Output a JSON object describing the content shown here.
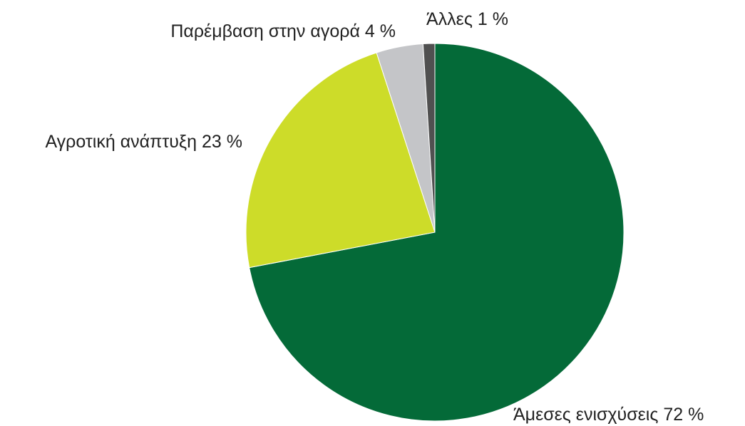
{
  "chart_data": {
    "type": "pie",
    "categories": [
      "Άμεσες ενισχύσεις",
      "Αγροτική ανάπτυξη",
      "Παρέμβαση στην αγορά",
      "Άλλες"
    ],
    "values": [
      72,
      23,
      4,
      1
    ],
    "value_labels": [
      "72 %",
      "23 %",
      "4 %",
      "1 %"
    ],
    "colors": [
      "#046a38",
      "#cddc29",
      "#c4c5c8",
      "#505050"
    ]
  }
}
